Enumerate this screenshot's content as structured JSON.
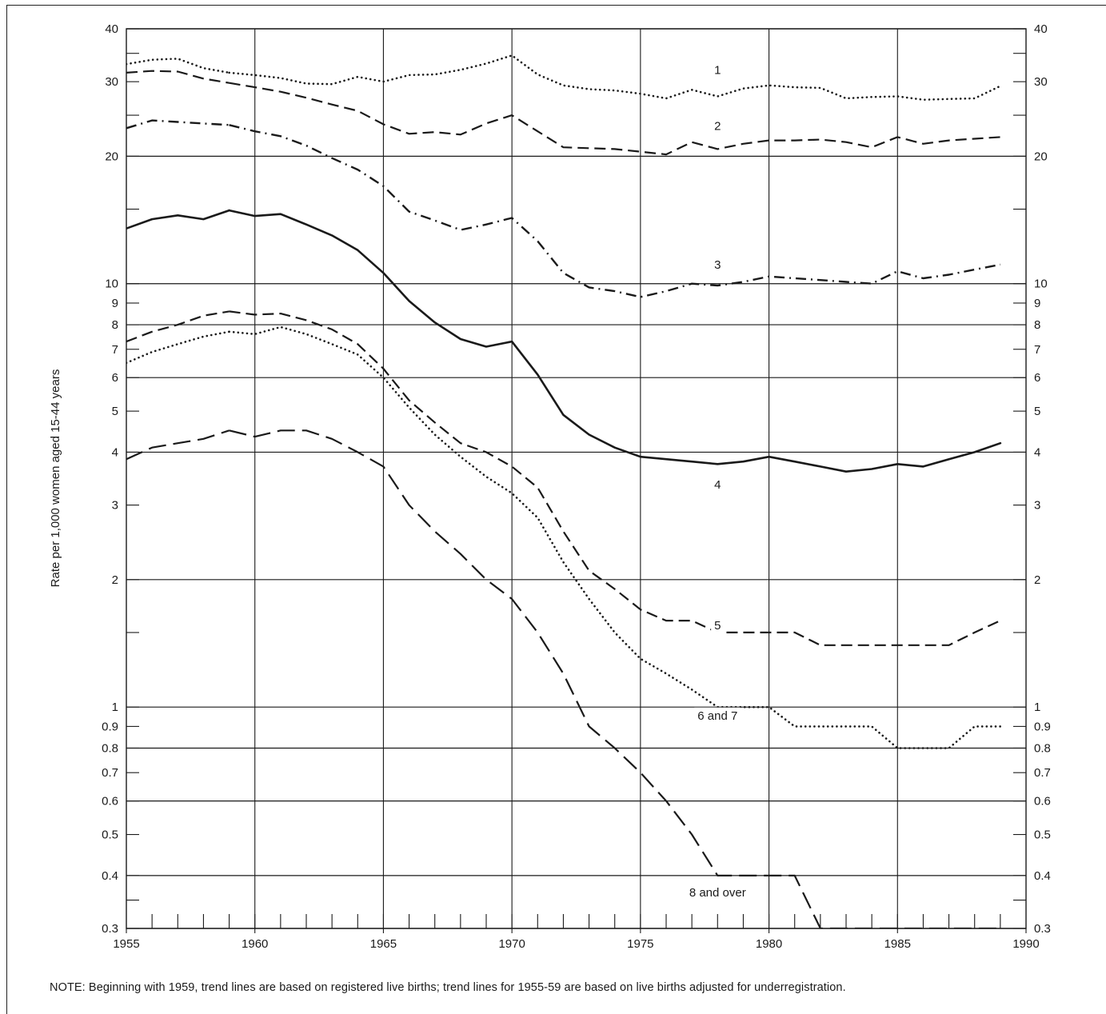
{
  "note": "NOTE: Beginning with 1959, trend lines are based on registered live births; trend lines for 1955-59 are based on live births adjusted for underregistration.",
  "chart_data": {
    "type": "line",
    "ylabel": "Rate per 1,000 women aged 15-44 years",
    "xlabel": "",
    "y_scale": "log",
    "xlim": [
      1955,
      1990
    ],
    "ylim": [
      0.3,
      40
    ],
    "grid": true,
    "x_ticks": [
      "1955",
      "1960",
      "1965",
      "1970",
      "1975",
      "1980",
      "1985",
      "1990"
    ],
    "y_ticks": [
      {
        "value": 40,
        "label": "40"
      },
      {
        "value": 30,
        "label": "30"
      },
      {
        "value": 20,
        "label": "20"
      },
      {
        "value": 10,
        "label": "10"
      },
      {
        "value": 9,
        "label": "9"
      },
      {
        "value": 8,
        "label": "8"
      },
      {
        "value": 7,
        "label": "7"
      },
      {
        "value": 6,
        "label": "6"
      },
      {
        "value": 5,
        "label": "5"
      },
      {
        "value": 4,
        "label": "4"
      },
      {
        "value": 3,
        "label": "3"
      },
      {
        "value": 2,
        "label": "2"
      },
      {
        "value": 1,
        "label": "1"
      },
      {
        "value": 0.9,
        "label": "0.9"
      },
      {
        "value": 0.8,
        "label": "0.8"
      },
      {
        "value": 0.7,
        "label": "0.7"
      },
      {
        "value": 0.6,
        "label": "0.6"
      },
      {
        "value": 0.5,
        "label": "0.5"
      },
      {
        "value": 0.4,
        "label": "0.4"
      },
      {
        "value": 0.3,
        "label": "0.3"
      }
    ],
    "major_gridlines": [
      40,
      20,
      10,
      8,
      6,
      4,
      2,
      1,
      0.8,
      0.6,
      0.4,
      0.3
    ],
    "series": [
      {
        "name": "1",
        "label_at": [
          1978,
          32
        ],
        "style": "dotted",
        "points": [
          [
            1955,
            33.0
          ],
          [
            1956,
            33.8
          ],
          [
            1957,
            34.0
          ],
          [
            1958,
            32.3
          ],
          [
            1959,
            31.5
          ],
          [
            1960,
            31.1
          ],
          [
            1961,
            30.6
          ],
          [
            1962,
            29.7
          ],
          [
            1963,
            29.6
          ],
          [
            1964,
            30.8
          ],
          [
            1965,
            30.0
          ],
          [
            1966,
            31.1
          ],
          [
            1967,
            31.2
          ],
          [
            1968,
            32.0
          ],
          [
            1969,
            33.1
          ],
          [
            1970,
            34.6
          ],
          [
            1971,
            31.2
          ],
          [
            1972,
            29.4
          ],
          [
            1973,
            28.8
          ],
          [
            1974,
            28.6
          ],
          [
            1975,
            28.1
          ],
          [
            1976,
            27.4
          ],
          [
            1977,
            28.7
          ],
          [
            1978,
            27.7
          ],
          [
            1979,
            28.9
          ],
          [
            1980,
            29.4
          ],
          [
            1981,
            29.1
          ],
          [
            1982,
            29.0
          ],
          [
            1983,
            27.4
          ],
          [
            1984,
            27.6
          ],
          [
            1985,
            27.7
          ],
          [
            1986,
            27.2
          ],
          [
            1987,
            27.3
          ],
          [
            1988,
            27.4
          ],
          [
            1989,
            29.3
          ]
        ]
      },
      {
        "name": "2",
        "label_at": [
          1978,
          23.6
        ],
        "style": "dashed",
        "points": [
          [
            1955,
            31.5
          ],
          [
            1956,
            31.8
          ],
          [
            1957,
            31.7
          ],
          [
            1958,
            30.5
          ],
          [
            1959,
            29.8
          ],
          [
            1960,
            29.1
          ],
          [
            1961,
            28.4
          ],
          [
            1962,
            27.5
          ],
          [
            1963,
            26.5
          ],
          [
            1964,
            25.6
          ],
          [
            1965,
            23.8
          ],
          [
            1966,
            22.6
          ],
          [
            1967,
            22.8
          ],
          [
            1968,
            22.5
          ],
          [
            1969,
            23.9
          ],
          [
            1970,
            25.0
          ],
          [
            1971,
            22.9
          ],
          [
            1972,
            21.0
          ],
          [
            1973,
            20.9
          ],
          [
            1974,
            20.8
          ],
          [
            1975,
            20.5
          ],
          [
            1976,
            20.2
          ],
          [
            1977,
            21.6
          ],
          [
            1978,
            20.8
          ],
          [
            1979,
            21.4
          ],
          [
            1980,
            21.8
          ],
          [
            1981,
            21.8
          ],
          [
            1982,
            21.9
          ],
          [
            1983,
            21.6
          ],
          [
            1984,
            21.0
          ],
          [
            1985,
            22.2
          ],
          [
            1986,
            21.4
          ],
          [
            1987,
            21.8
          ],
          [
            1988,
            22.0
          ],
          [
            1989,
            22.2
          ]
        ]
      },
      {
        "name": "3",
        "label_at": [
          1978,
          11.1
        ],
        "style": "dashdot",
        "points": [
          [
            1955,
            23.3
          ],
          [
            1956,
            24.3
          ],
          [
            1957,
            24.1
          ],
          [
            1958,
            23.9
          ],
          [
            1959,
            23.7
          ],
          [
            1960,
            22.9
          ],
          [
            1961,
            22.3
          ],
          [
            1962,
            21.2
          ],
          [
            1963,
            19.8
          ],
          [
            1964,
            18.6
          ],
          [
            1965,
            17.0
          ],
          [
            1966,
            14.8
          ],
          [
            1967,
            14.1
          ],
          [
            1968,
            13.4
          ],
          [
            1969,
            13.8
          ],
          [
            1970,
            14.3
          ],
          [
            1971,
            12.6
          ],
          [
            1972,
            10.6
          ],
          [
            1973,
            9.8
          ],
          [
            1974,
            9.6
          ],
          [
            1975,
            9.3
          ],
          [
            1976,
            9.6
          ],
          [
            1977,
            10.0
          ],
          [
            1978,
            9.9
          ],
          [
            1979,
            10.1
          ],
          [
            1980,
            10.4
          ],
          [
            1981,
            10.3
          ],
          [
            1982,
            10.2
          ],
          [
            1983,
            10.1
          ],
          [
            1984,
            10.0
          ],
          [
            1985,
            10.7
          ],
          [
            1986,
            10.3
          ],
          [
            1987,
            10.5
          ],
          [
            1988,
            10.8
          ],
          [
            1989,
            11.1
          ]
        ]
      },
      {
        "name": "4",
        "label_at": [
          1978,
          3.35
        ],
        "style": "solid",
        "points": [
          [
            1955,
            13.5
          ],
          [
            1956,
            14.2
          ],
          [
            1957,
            14.5
          ],
          [
            1958,
            14.2
          ],
          [
            1959,
            14.9
          ],
          [
            1960,
            14.45
          ],
          [
            1961,
            14.6
          ],
          [
            1962,
            13.8
          ],
          [
            1963,
            13.0
          ],
          [
            1964,
            12.0
          ],
          [
            1965,
            10.6
          ],
          [
            1966,
            9.1
          ],
          [
            1967,
            8.1
          ],
          [
            1968,
            7.4
          ],
          [
            1969,
            7.1
          ],
          [
            1970,
            7.3
          ],
          [
            1971,
            6.1
          ],
          [
            1972,
            4.9
          ],
          [
            1973,
            4.4
          ],
          [
            1974,
            4.1
          ],
          [
            1975,
            3.9
          ],
          [
            1976,
            3.85
          ],
          [
            1977,
            3.8
          ],
          [
            1978,
            3.75
          ],
          [
            1979,
            3.8
          ],
          [
            1980,
            3.9
          ],
          [
            1981,
            3.8
          ],
          [
            1982,
            3.7
          ],
          [
            1983,
            3.6
          ],
          [
            1984,
            3.65
          ],
          [
            1985,
            3.75
          ],
          [
            1986,
            3.7
          ],
          [
            1987,
            3.85
          ],
          [
            1988,
            4.0
          ],
          [
            1989,
            4.2
          ]
        ]
      },
      {
        "name": "5",
        "label_at": [
          1978,
          1.56
        ],
        "style": "dashed",
        "points": [
          [
            1955,
            7.3
          ],
          [
            1956,
            7.7
          ],
          [
            1957,
            8.0
          ],
          [
            1958,
            8.4
          ],
          [
            1959,
            8.6
          ],
          [
            1960,
            8.45
          ],
          [
            1961,
            8.5
          ],
          [
            1962,
            8.2
          ],
          [
            1963,
            7.8
          ],
          [
            1964,
            7.2
          ],
          [
            1965,
            6.3
          ],
          [
            1966,
            5.3
          ],
          [
            1967,
            4.7
          ],
          [
            1968,
            4.2
          ],
          [
            1969,
            4.0
          ],
          [
            1970,
            3.7
          ],
          [
            1971,
            3.3
          ],
          [
            1972,
            2.6
          ],
          [
            1973,
            2.1
          ],
          [
            1974,
            1.9
          ],
          [
            1975,
            1.7
          ],
          [
            1976,
            1.6
          ],
          [
            1977,
            1.6
          ],
          [
            1978,
            1.5
          ],
          [
            1979,
            1.5
          ],
          [
            1980,
            1.5
          ],
          [
            1981,
            1.5
          ],
          [
            1982,
            1.4
          ],
          [
            1983,
            1.4
          ],
          [
            1984,
            1.4
          ],
          [
            1985,
            1.4
          ],
          [
            1986,
            1.4
          ],
          [
            1987,
            1.4
          ],
          [
            1988,
            1.5
          ],
          [
            1989,
            1.6
          ]
        ]
      },
      {
        "name": "6 and 7",
        "label_at": [
          1978,
          0.955
        ],
        "style": "dotted",
        "points": [
          [
            1955,
            6.5
          ],
          [
            1956,
            6.9
          ],
          [
            1957,
            7.2
          ],
          [
            1958,
            7.5
          ],
          [
            1959,
            7.7
          ],
          [
            1960,
            7.6
          ],
          [
            1961,
            7.9
          ],
          [
            1962,
            7.6
          ],
          [
            1963,
            7.2
          ],
          [
            1964,
            6.8
          ],
          [
            1965,
            6.0
          ],
          [
            1966,
            5.1
          ],
          [
            1967,
            4.4
          ],
          [
            1968,
            3.9
          ],
          [
            1969,
            3.5
          ],
          [
            1970,
            3.2
          ],
          [
            1971,
            2.8
          ],
          [
            1972,
            2.2
          ],
          [
            1973,
            1.8
          ],
          [
            1974,
            1.5
          ],
          [
            1975,
            1.3
          ],
          [
            1976,
            1.2
          ],
          [
            1977,
            1.1
          ],
          [
            1978,
            1.0
          ],
          [
            1979,
            1.0
          ],
          [
            1980,
            1.0
          ],
          [
            1981,
            0.9
          ],
          [
            1982,
            0.9
          ],
          [
            1983,
            0.9
          ],
          [
            1984,
            0.9
          ],
          [
            1985,
            0.8
          ],
          [
            1986,
            0.8
          ],
          [
            1987,
            0.8
          ],
          [
            1988,
            0.9
          ],
          [
            1989,
            0.9
          ]
        ]
      },
      {
        "name": "8 and over",
        "label_at": [
          1978,
          0.365
        ],
        "style": "longdash",
        "points": [
          [
            1955,
            3.85
          ],
          [
            1956,
            4.1
          ],
          [
            1957,
            4.2
          ],
          [
            1958,
            4.3
          ],
          [
            1959,
            4.5
          ],
          [
            1960,
            4.35
          ],
          [
            1961,
            4.5
          ],
          [
            1962,
            4.5
          ],
          [
            1963,
            4.3
          ],
          [
            1964,
            4.0
          ],
          [
            1965,
            3.7
          ],
          [
            1966,
            3.0
          ],
          [
            1967,
            2.6
          ],
          [
            1968,
            2.3
          ],
          [
            1969,
            2.0
          ],
          [
            1970,
            1.8
          ],
          [
            1971,
            1.5
          ],
          [
            1972,
            1.2
          ],
          [
            1973,
            0.9
          ],
          [
            1974,
            0.8
          ],
          [
            1975,
            0.7
          ],
          [
            1976,
            0.6
          ],
          [
            1977,
            0.5
          ],
          [
            1978,
            0.4
          ],
          [
            1979,
            0.4
          ],
          [
            1980,
            0.4
          ],
          [
            1981,
            0.4
          ],
          [
            1982,
            0.3
          ],
          [
            1983,
            0.3
          ],
          [
            1984,
            0.3
          ],
          [
            1985,
            0.3
          ],
          [
            1986,
            0.3
          ],
          [
            1987,
            0.3
          ],
          [
            1988,
            0.3
          ],
          [
            1989,
            0.3
          ]
        ]
      }
    ]
  }
}
